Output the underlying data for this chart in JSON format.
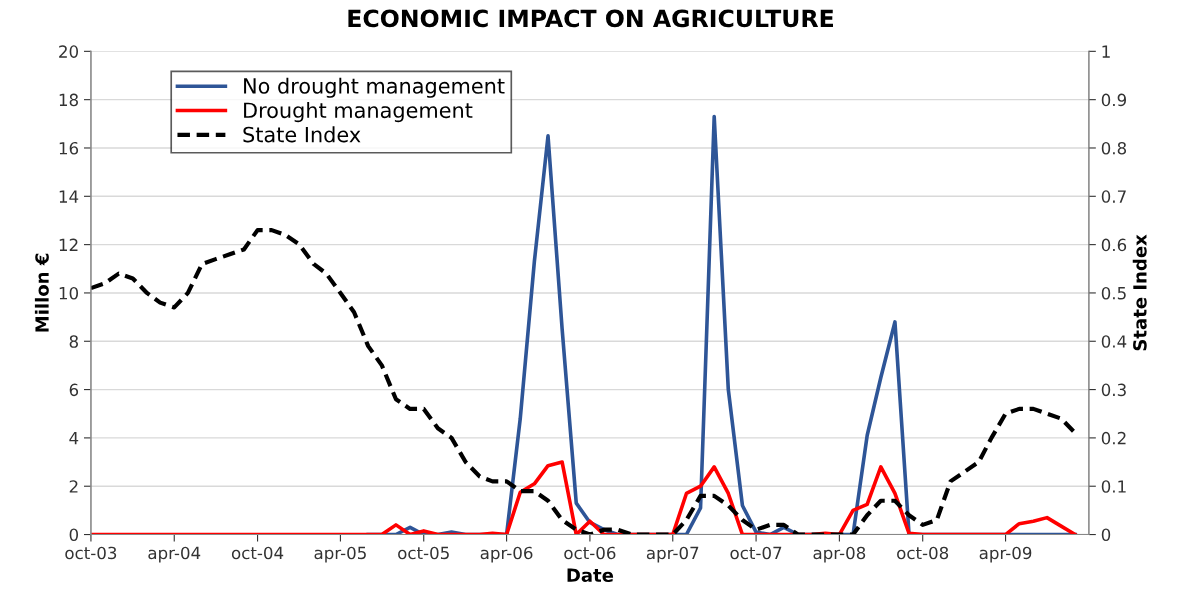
{
  "chart_data": {
    "type": "line",
    "title": "ECONOMIC IMPACT ON AGRICULTURE",
    "xlabel": "Date",
    "ylabel": "Millon €",
    "y2label": "State Index",
    "x": [
      "2003-10",
      "2003-11",
      "2003-12",
      "2004-01",
      "2004-02",
      "2004-03",
      "2004-04",
      "2004-05",
      "2004-06",
      "2004-07",
      "2004-08",
      "2004-09",
      "2004-10",
      "2004-11",
      "2004-12",
      "2005-01",
      "2005-02",
      "2005-03",
      "2005-04",
      "2005-05",
      "2005-06",
      "2005-07",
      "2005-08",
      "2005-09",
      "2005-10",
      "2005-11",
      "2005-12",
      "2006-01",
      "2006-02",
      "2006-03",
      "2006-04",
      "2006-05",
      "2006-06",
      "2006-07",
      "2006-08",
      "2006-09",
      "2006-10",
      "2006-11",
      "2006-12",
      "2007-01",
      "2007-02",
      "2007-03",
      "2007-04",
      "2007-05",
      "2007-06",
      "2007-07",
      "2007-08",
      "2007-09",
      "2007-10",
      "2007-11",
      "2007-12",
      "2008-01",
      "2008-02",
      "2008-03",
      "2008-04",
      "2008-05",
      "2008-06",
      "2008-07",
      "2008-08",
      "2008-09",
      "2008-10",
      "2008-11",
      "2008-12",
      "2009-01",
      "2009-02",
      "2009-03",
      "2009-04",
      "2009-05",
      "2009-06",
      "2009-07",
      "2009-08",
      "2009-09"
    ],
    "series": [
      {
        "name": "No drought management",
        "color": "#2e5597",
        "line_style": "solid",
        "values": [
          null,
          null,
          null,
          null,
          null,
          null,
          null,
          null,
          null,
          null,
          null,
          null,
          null,
          null,
          null,
          null,
          null,
          null,
          null,
          null,
          0,
          0,
          0,
          0.3,
          0,
          0,
          0.1,
          0,
          0,
          0,
          0,
          4.8,
          11.3,
          16.5,
          8.5,
          1.3,
          0.5,
          0.2,
          0,
          0,
          0,
          0,
          0,
          0,
          1.1,
          17.3,
          6.0,
          1.2,
          0.1,
          0,
          0.3,
          0,
          0,
          0,
          0,
          0,
          4.1,
          6.5,
          8.8,
          0,
          0,
          0,
          0,
          0,
          0,
          0,
          0,
          0,
          0,
          0,
          0,
          0
        ]
      },
      {
        "name": "Drought management",
        "color": "#ff0000",
        "line_style": "solid",
        "values": [
          0,
          0,
          0,
          0,
          0,
          0,
          0,
          0,
          0,
          0,
          0,
          0,
          0,
          0,
          0,
          0,
          0,
          0,
          0,
          0,
          0,
          0,
          0.4,
          0,
          0.15,
          0,
          0,
          0,
          0,
          0.05,
          0,
          1.75,
          2.1,
          2.85,
          3.0,
          0,
          0.55,
          0,
          0,
          0,
          0,
          0,
          0,
          1.7,
          2.0,
          2.8,
          1.7,
          0,
          0,
          0,
          0,
          0,
          0,
          0.05,
          0,
          1.0,
          1.25,
          2.8,
          1.7,
          0.05,
          0,
          0,
          0,
          0,
          0,
          0,
          0,
          0.45,
          0.55,
          0.7,
          0.35,
          0
        ]
      },
      {
        "name": "State Index",
        "color": "#000000",
        "line_style": "dashed",
        "axis": "y2",
        "values": [
          0.51,
          0.52,
          0.54,
          0.53,
          0.5,
          0.48,
          0.47,
          0.5,
          0.56,
          0.57,
          0.58,
          0.59,
          0.63,
          0.63,
          0.62,
          0.6,
          0.56,
          0.54,
          0.5,
          0.46,
          0.39,
          0.35,
          0.28,
          0.26,
          0.26,
          0.22,
          0.2,
          0.15,
          0.12,
          0.11,
          0.11,
          0.09,
          0.09,
          0.07,
          0.03,
          0.01,
          0,
          0.01,
          0.01,
          0,
          0,
          0,
          0,
          0.03,
          0.08,
          0.08,
          0.06,
          0.03,
          0.01,
          0.02,
          0.02,
          0,
          0,
          0,
          0,
          0,
          0.04,
          0.07,
          0.07,
          0.04,
          0.02,
          0.03,
          0.11,
          0.13,
          0.15,
          0.2,
          0.25,
          0.26,
          0.26,
          0.25,
          0.24,
          0.21
        ]
      }
    ],
    "xlim": [
      "2003-10",
      "2009-10"
    ],
    "xticks": [
      {
        "value": "2003-10",
        "label": "oct-03"
      },
      {
        "value": "2004-04",
        "label": "apr-04"
      },
      {
        "value": "2004-10",
        "label": "oct-04"
      },
      {
        "value": "2005-04",
        "label": "apr-05"
      },
      {
        "value": "2005-10",
        "label": "oct-05"
      },
      {
        "value": "2006-04",
        "label": "apr-06"
      },
      {
        "value": "2006-10",
        "label": "oct-06"
      },
      {
        "value": "2007-04",
        "label": "apr-07"
      },
      {
        "value": "2007-10",
        "label": "oct-07"
      },
      {
        "value": "2008-04",
        "label": "apr-08"
      },
      {
        "value": "2008-10",
        "label": "oct-08"
      },
      {
        "value": "2009-04",
        "label": "apr-09"
      }
    ],
    "ylim": [
      0,
      20
    ],
    "yticks": [
      0,
      2,
      4,
      6,
      8,
      10,
      12,
      14,
      16,
      18,
      20
    ],
    "y2lim": [
      0,
      1
    ],
    "y2ticks": [
      0,
      0.1,
      0.2,
      0.3,
      0.4,
      0.5,
      0.6,
      0.7,
      0.8,
      0.9,
      1
    ],
    "grid": "y",
    "legend": "top left",
    "marker": "none"
  }
}
